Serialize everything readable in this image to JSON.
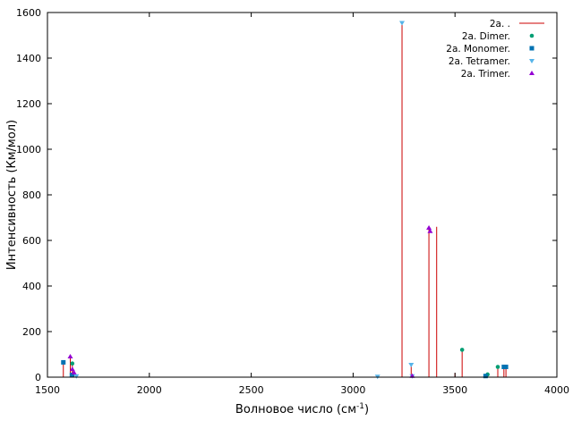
{
  "chart_data": {
    "type": "scatter",
    "xlabel": "Волновое число (см",
    "xlabel_sup": "-1",
    "xlabel_suffix": ")",
    "ylabel": "Интенсивность (Км/мол)",
    "xlim": [
      1500,
      4000
    ],
    "ylim": [
      0,
      1600
    ],
    "xticks": [
      1500,
      2000,
      2500,
      3000,
      3500,
      4000
    ],
    "yticks": [
      0,
      200,
      400,
      600,
      800,
      1000,
      1200,
      1400,
      1600
    ],
    "grid": false,
    "legend_position": "top-right",
    "stick_color": "#cc0000",
    "sticks": [
      {
        "x": 1578,
        "y": 65
      },
      {
        "x": 1612,
        "y": 90
      },
      {
        "x": 1622,
        "y": 60
      },
      {
        "x": 1630,
        "y": 20
      },
      {
        "x": 1642,
        "y": 5
      },
      {
        "x": 3120,
        "y": 3
      },
      {
        "x": 3240,
        "y": 1555
      },
      {
        "x": 3285,
        "y": 55
      },
      {
        "x": 3290,
        "y": 5
      },
      {
        "x": 3372,
        "y": 655
      },
      {
        "x": 3410,
        "y": 660
      },
      {
        "x": 3500,
        "y": 18
      },
      {
        "x": 3535,
        "y": 120
      },
      {
        "x": 3650,
        "y": 5
      },
      {
        "x": 3660,
        "y": 12
      },
      {
        "x": 3710,
        "y": 45
      },
      {
        "x": 3740,
        "y": 45
      },
      {
        "x": 3750,
        "y": 45
      }
    ],
    "series": [
      {
        "name": "2a. .",
        "marker": "line",
        "color": "#cc0000",
        "x": [],
        "y": []
      },
      {
        "name": "2a. Dimer.",
        "marker": "circle",
        "color": "#009e73",
        "x": [
          1578,
          1622,
          3535,
          3660,
          3710
        ],
        "y": [
          65,
          60,
          120,
          12,
          45
        ]
      },
      {
        "name": "2a. Monomer.",
        "marker": "square",
        "color": "#0072b2",
        "x": [
          1578,
          1620,
          3650,
          3740,
          3750
        ],
        "y": [
          65,
          10,
          5,
          45,
          45
        ]
      },
      {
        "name": "2a. Tetramer.",
        "marker": "triangle-down",
        "color": "#56b4e9",
        "x": [
          1642,
          3120,
          3240,
          3285,
          3290
        ],
        "y": [
          5,
          3,
          1555,
          55,
          5
        ]
      },
      {
        "name": "2a. Trimer.",
        "marker": "triangle-up",
        "color": "#9400d3",
        "x": [
          1612,
          1622,
          1630,
          3290,
          3372,
          3378
        ],
        "y": [
          90,
          35,
          20,
          5,
          655,
          640
        ]
      }
    ]
  }
}
